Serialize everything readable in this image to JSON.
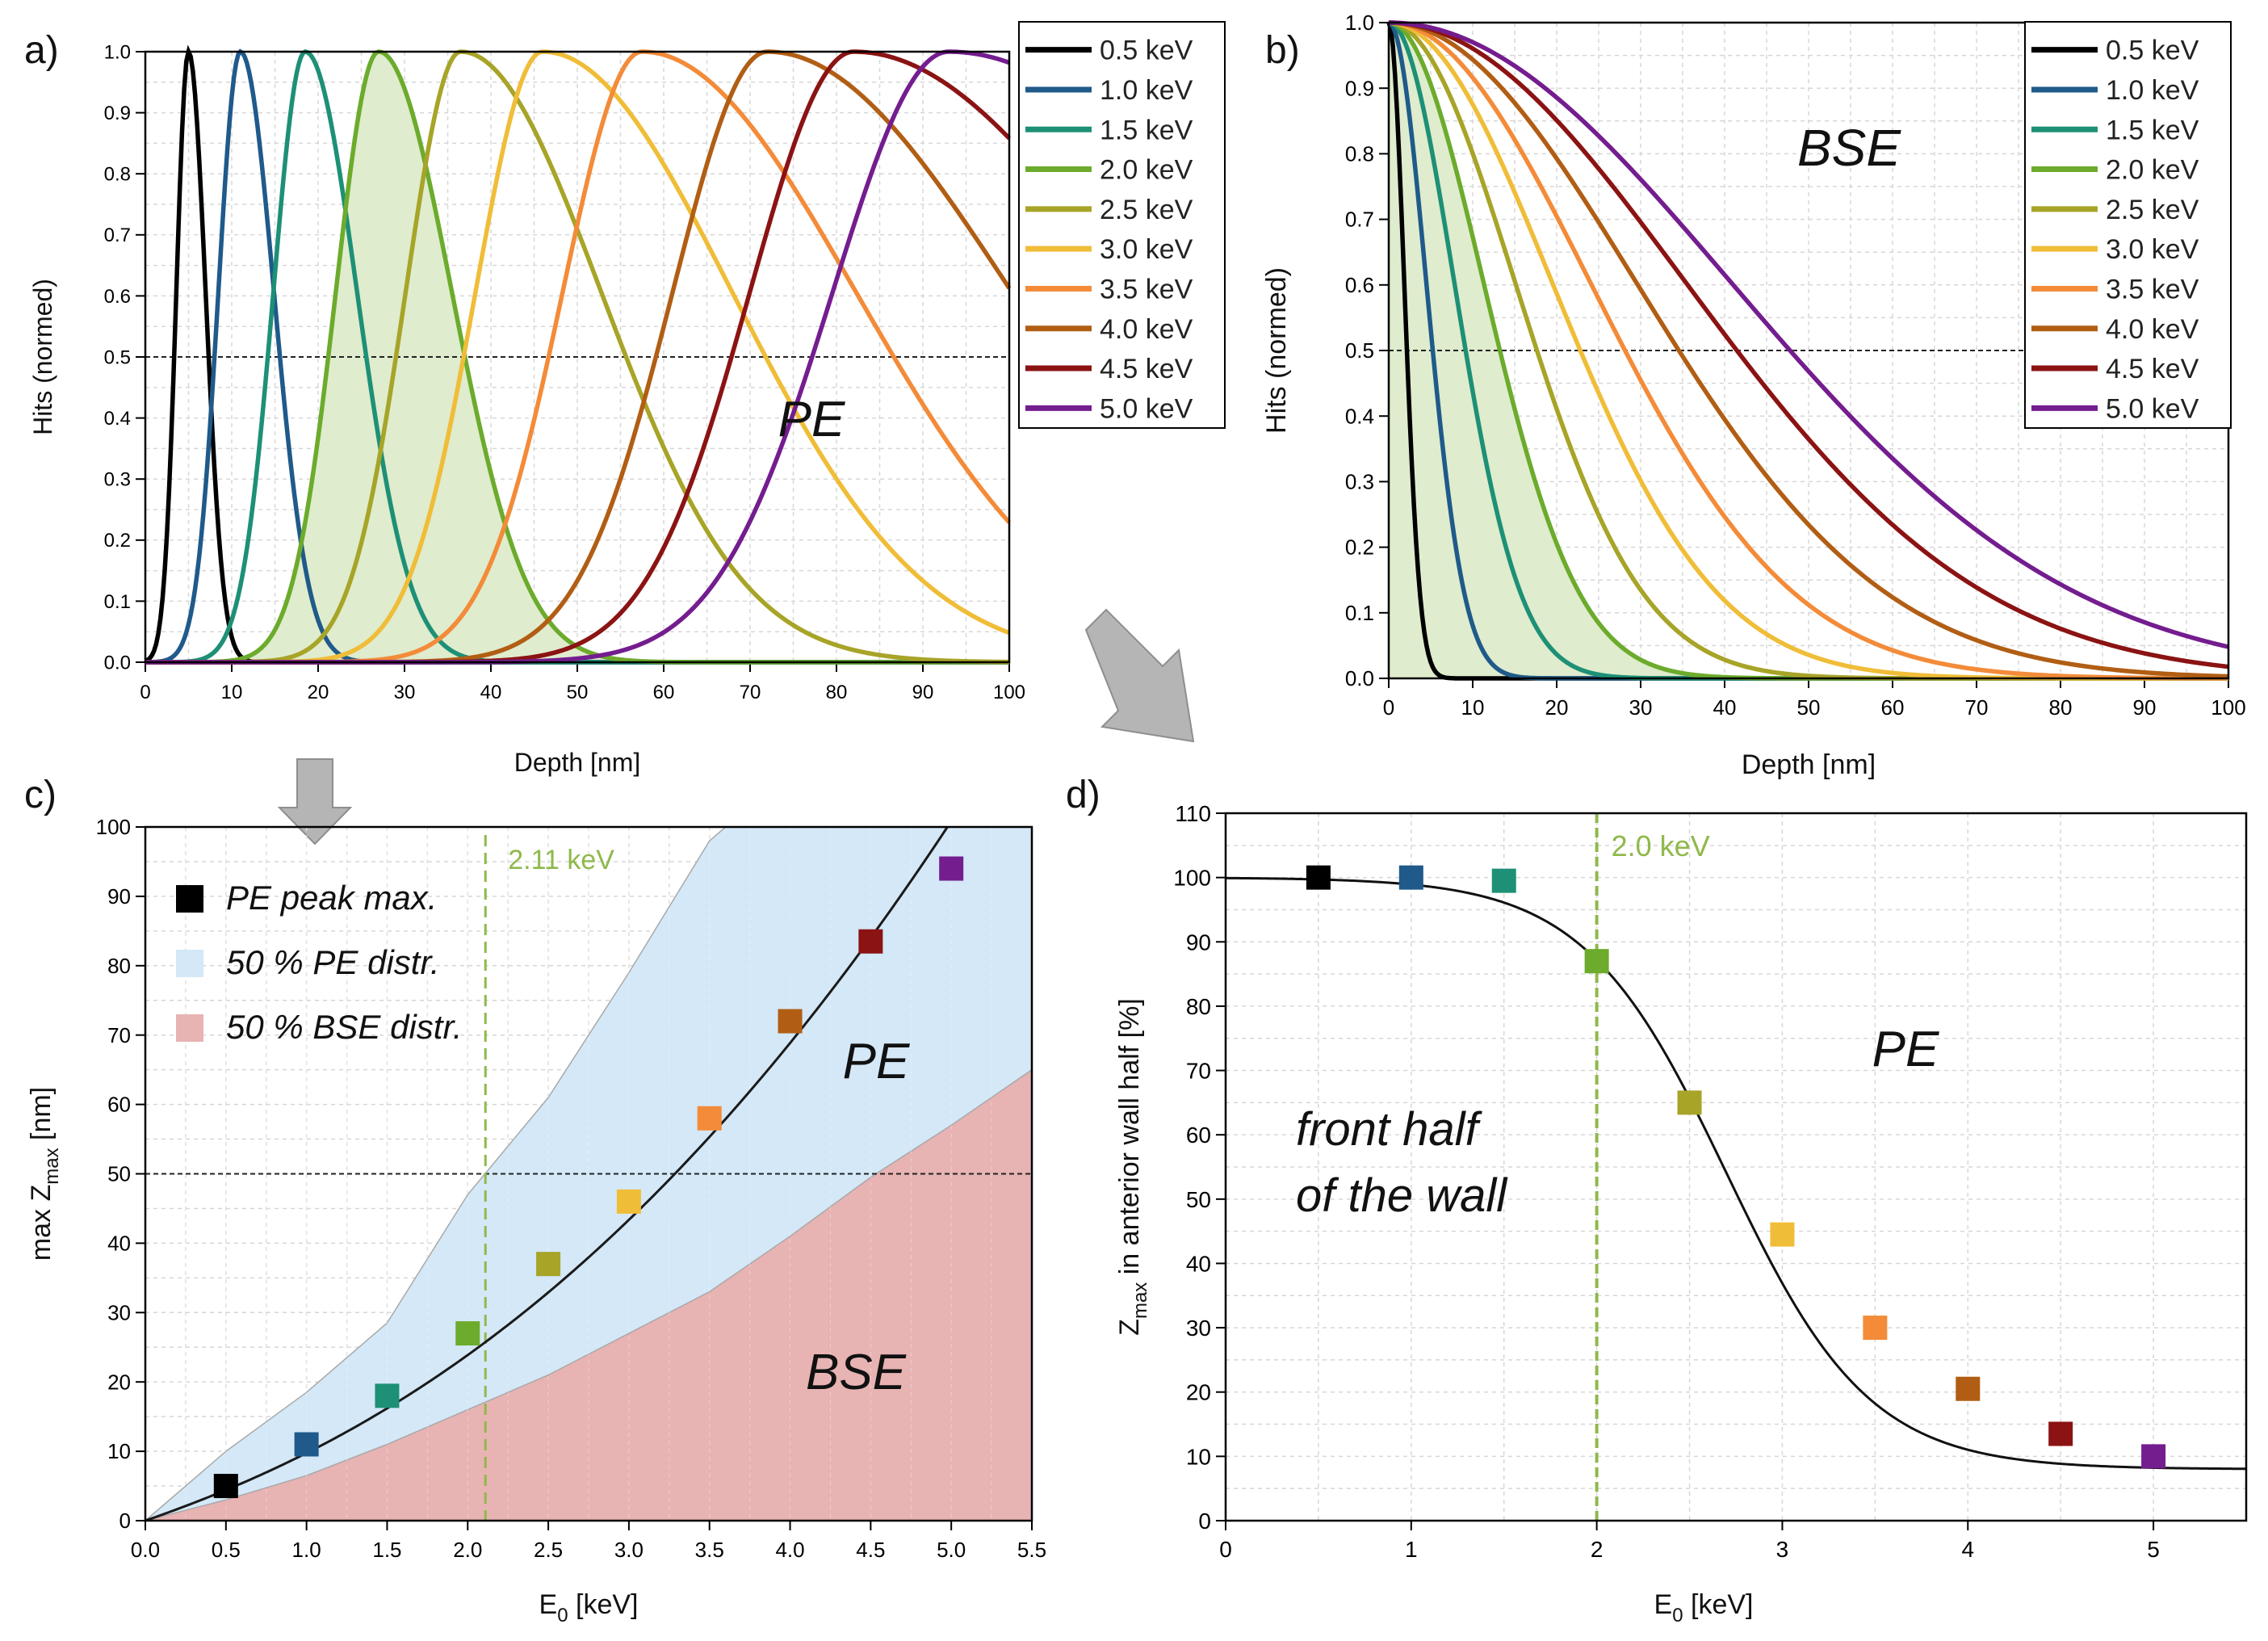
{
  "colors": {
    "c05": "#000000",
    "c10": "#1f5a8a",
    "c15": "#1d9076",
    "c20": "#6cab2c",
    "c25": "#a7a428",
    "c30": "#f0bd38",
    "c35": "#f38b39",
    "c40": "#b15e14",
    "c45": "#8b1313",
    "c50": "#741d8f",
    "pe_fill": "#d4e8f7",
    "bse_fill": "#e8b3b3",
    "green_fill": "#dfeccd",
    "guide": "#8fb94b",
    "arrow": "#b5b5b5"
  },
  "chart_data": [
    {
      "id": "a",
      "panel_label": "a)",
      "type": "line",
      "xlabel": "Depth [nm]",
      "ylabel": "Hits (normed)",
      "xlim": [
        0,
        100
      ],
      "ylim": [
        0,
        1.0
      ],
      "xticks": [
        "0",
        "10",
        "20",
        "30",
        "40",
        "50",
        "60",
        "70",
        "80",
        "90",
        "100"
      ],
      "yticks": [
        "0.0",
        "0.1",
        "0.2",
        "0.3",
        "0.4",
        "0.5",
        "0.6",
        "0.7",
        "0.8",
        "0.9",
        "1.0"
      ],
      "annotation": "PE",
      "reference_line_y": 0.5,
      "shaded_series": "2.0 keV",
      "curve_model": "gaussian peak: peak depth, left half-width, right half-width (nm)",
      "series": [
        {
          "name": "0.5 keV",
          "color_key": "c05",
          "peak": 5,
          "w_left": 2.0,
          "w_right": 2.8
        },
        {
          "name": "1.0 keV",
          "color_key": "c10",
          "peak": 11,
          "w_left": 3.6,
          "w_right": 5.5
        },
        {
          "name": "1.5 keV",
          "color_key": "c15",
          "peak": 18.5,
          "w_left": 5.2,
          "w_right": 8.5
        },
        {
          "name": "2.0 keV",
          "color_key": "c20",
          "peak": 27,
          "w_left": 7.0,
          "w_right": 12.0
        },
        {
          "name": "2.5 keV",
          "color_key": "c25",
          "peak": 36.5,
          "w_left": 9.0,
          "w_right": 23.0
        },
        {
          "name": "3.0 keV",
          "color_key": "c30",
          "peak": 46,
          "w_left": 11.0,
          "w_right": 31.0
        },
        {
          "name": "3.5 keV",
          "color_key": "c35",
          "peak": 57.5,
          "w_left": 13.0,
          "w_right": 35.0
        },
        {
          "name": "4.0 keV",
          "color_key": "c40",
          "peak": 72,
          "w_left": 15.5,
          "w_right": 40.0
        },
        {
          "name": "4.5 keV",
          "color_key": "c45",
          "peak": 82,
          "w_left": 17.0,
          "w_right": 46.0
        },
        {
          "name": "5.0 keV",
          "color_key": "c50",
          "peak": 93,
          "w_left": 19.0,
          "w_right": 52.0
        }
      ]
    },
    {
      "id": "b",
      "panel_label": "b)",
      "type": "line",
      "xlabel": "Depth [nm]",
      "ylabel": "Hits (normed)",
      "xlim": [
        0,
        100
      ],
      "ylim": [
        0,
        1.0
      ],
      "xticks": [
        "0",
        "10",
        "20",
        "30",
        "40",
        "50",
        "60",
        "70",
        "80",
        "90",
        "100"
      ],
      "yticks": [
        "0.0",
        "0.1",
        "0.2",
        "0.3",
        "0.4",
        "0.5",
        "0.6",
        "0.7",
        "0.8",
        "0.9",
        "1.0"
      ],
      "annotation": "BSE",
      "reference_line_y": 0.5,
      "shaded_series": "2.0 keV",
      "curve_model": "gaussian decay from 0 nm: half-width (nm) at 1/e",
      "series": [
        {
          "name": "0.5 keV",
          "color_key": "c05",
          "width": 2.6
        },
        {
          "name": "1.0 keV",
          "color_key": "c10",
          "width": 6.3
        },
        {
          "name": "1.5 keV",
          "color_key": "c15",
          "width": 11.0
        },
        {
          "name": "2.0 keV",
          "color_key": "c20",
          "width": 15.9
        },
        {
          "name": "2.5 keV",
          "color_key": "c25",
          "width": 21.2
        },
        {
          "name": "3.0 keV",
          "color_key": "c30",
          "width": 27.4
        },
        {
          "name": "3.5 keV",
          "color_key": "c35",
          "width": 33.8
        },
        {
          "name": "4.0 keV",
          "color_key": "c40",
          "width": 41.5
        },
        {
          "name": "4.5 keV",
          "color_key": "c45",
          "width": 49.8
        },
        {
          "name": "5.0 keV",
          "color_key": "c50",
          "width": 57.4
        }
      ]
    },
    {
      "id": "c",
      "panel_label": "c)",
      "type": "scatter",
      "xlabel": "E",
      "xlabel_sub": "0",
      "xlabel_tail": " [keV]",
      "ylabel": "max Z",
      "ylabel_sub": "max",
      "ylabel_tail": " [nm]",
      "xlim": [
        0,
        5.5
      ],
      "ylim": [
        0,
        100
      ],
      "xticks": [
        "0.0",
        "0.5",
        "1.0",
        "1.5",
        "2.0",
        "2.5",
        "3.0",
        "3.5",
        "4.0",
        "4.5",
        "5.0",
        "5.5"
      ],
      "yticks": [
        "0",
        "10",
        "20",
        "30",
        "40",
        "50",
        "60",
        "70",
        "80",
        "90",
        "100"
      ],
      "guide_x": 2.11,
      "guide_label": "2.11 keV",
      "reference_line_y": 50,
      "annotations": [
        "PE",
        "BSE"
      ],
      "legend": [
        {
          "label": "PE peak max.",
          "fill_key": "c05"
        },
        {
          "label": "50 % PE distr.",
          "fill_key": "pe_fill"
        },
        {
          "label": "50 % BSE distr.",
          "fill_key": "bse_fill"
        }
      ],
      "points": [
        {
          "x": 0.5,
          "y": 5,
          "color_key": "c05"
        },
        {
          "x": 1.0,
          "y": 11,
          "color_key": "c10"
        },
        {
          "x": 1.5,
          "y": 18,
          "color_key": "c15"
        },
        {
          "x": 2.0,
          "y": 27,
          "color_key": "c20"
        },
        {
          "x": 2.5,
          "y": 37,
          "color_key": "c25"
        },
        {
          "x": 3.0,
          "y": 46,
          "color_key": "c30"
        },
        {
          "x": 3.5,
          "y": 58,
          "color_key": "c35"
        },
        {
          "x": 4.0,
          "y": 72,
          "color_key": "c40"
        },
        {
          "x": 4.5,
          "y": 83.5,
          "color_key": "c45"
        },
        {
          "x": 5.0,
          "y": 94,
          "color_key": "c50"
        }
      ],
      "pe_band_upper": [
        [
          0,
          0
        ],
        [
          0.5,
          10
        ],
        [
          1.0,
          18.5
        ],
        [
          1.5,
          28.5
        ],
        [
          2.0,
          47
        ],
        [
          2.5,
          61
        ],
        [
          3.0,
          79
        ],
        [
          3.5,
          98
        ],
        [
          3.6,
          100
        ]
      ],
      "bse_band_upper": [
        [
          0,
          0
        ],
        [
          0.5,
          3
        ],
        [
          1.0,
          6.5
        ],
        [
          1.5,
          11
        ],
        [
          2.0,
          16
        ],
        [
          2.5,
          21
        ],
        [
          3.0,
          27
        ],
        [
          3.5,
          33
        ],
        [
          4.0,
          41
        ],
        [
          4.5,
          49.5
        ],
        [
          5.0,
          57
        ],
        [
          5.5,
          65
        ]
      ]
    },
    {
      "id": "d",
      "panel_label": "d)",
      "type": "scatter",
      "xlabel": "E",
      "xlabel_sub": "0",
      "xlabel_tail": " [keV]",
      "ylabel": "Z",
      "ylabel_sub": "max",
      "ylabel_tail": " in anterior wall half [%]",
      "xlim": [
        0,
        5.5
      ],
      "ylim": [
        0,
        110
      ],
      "xticks": [
        "0",
        "1",
        "2",
        "3",
        "4",
        "5"
      ],
      "yticks": [
        "0",
        "10",
        "20",
        "30",
        "40",
        "50",
        "60",
        "70",
        "80",
        "90",
        "100",
        "110"
      ],
      "guide_x": 2.0,
      "guide_label": "2.0 keV",
      "annotations": [
        "PE",
        "front half",
        "of the wall"
      ],
      "points": [
        {
          "x": 0.5,
          "y": 100,
          "color_key": "c05"
        },
        {
          "x": 1.0,
          "y": 100,
          "color_key": "c10"
        },
        {
          "x": 1.5,
          "y": 99.5,
          "color_key": "c15"
        },
        {
          "x": 2.0,
          "y": 87,
          "color_key": "c20"
        },
        {
          "x": 2.5,
          "y": 65,
          "color_key": "c25"
        },
        {
          "x": 3.0,
          "y": 44.5,
          "color_key": "c30"
        },
        {
          "x": 3.5,
          "y": 30,
          "color_key": "c35"
        },
        {
          "x": 4.0,
          "y": 20.5,
          "color_key": "c40"
        },
        {
          "x": 4.5,
          "y": 13.5,
          "color_key": "c45"
        },
        {
          "x": 5.0,
          "y": 10,
          "color_key": "c50"
        }
      ],
      "fit": {
        "top": 100,
        "bottom": 8,
        "x0": 2.7,
        "k": 2.6
      }
    }
  ]
}
